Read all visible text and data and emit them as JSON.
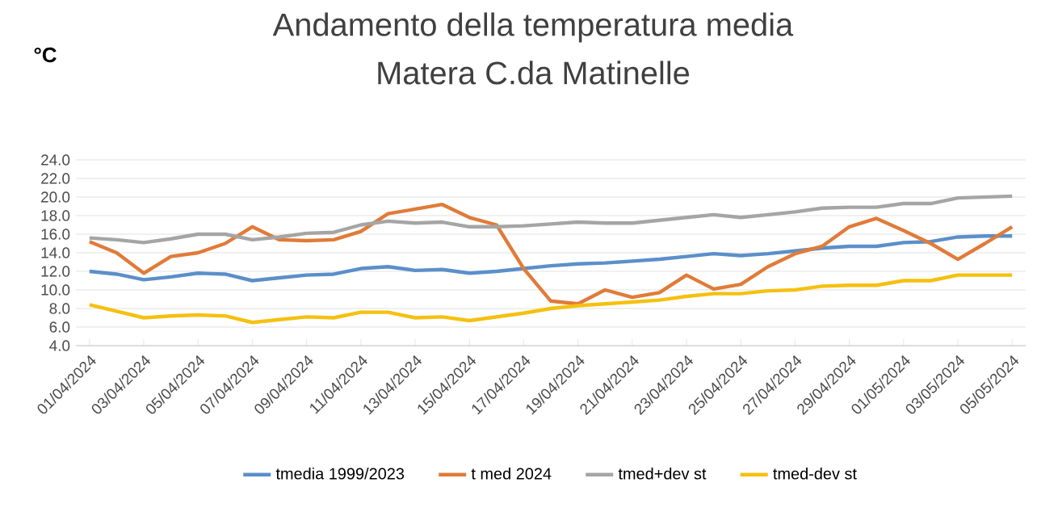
{
  "chart_data": {
    "type": "line",
    "title": "Andamento della temperatura media",
    "subtitle": "Matera C.da Matinelle",
    "ylabel": "°C",
    "categories": [
      "01/04/2024",
      null,
      "03/04/2024",
      null,
      "05/04/2024",
      null,
      "07/04/2024",
      null,
      "09/04/2024",
      null,
      "11/04/2024",
      null,
      "13/04/2024",
      null,
      "15/04/2024",
      null,
      "17/04/2024",
      null,
      "19/04/2024",
      null,
      "21/04/2024",
      null,
      "23/04/2024",
      null,
      "25/04/2024",
      null,
      "27/04/2024",
      null,
      "29/04/2024",
      null,
      "01/05/2024",
      null,
      "03/05/2024",
      null,
      "05/05/2024"
    ],
    "series": [
      {
        "name": "tmedia 1999/2023",
        "color": "#5b8fc9",
        "values": [
          12.0,
          11.7,
          11.1,
          11.4,
          11.8,
          11.7,
          11.0,
          11.3,
          11.6,
          11.7,
          12.3,
          12.5,
          12.1,
          12.2,
          11.8,
          12.0,
          12.3,
          12.6,
          12.8,
          12.9,
          13.1,
          13.3,
          13.6,
          13.9,
          13.7,
          13.9,
          14.2,
          14.5,
          14.7,
          14.7,
          15.1,
          15.2,
          15.7,
          15.8,
          15.8
        ]
      },
      {
        "name": "t med 2024",
        "color": "#e07b39",
        "values": [
          15.2,
          14.0,
          11.8,
          13.6,
          14.0,
          15.0,
          16.8,
          15.4,
          15.3,
          15.4,
          16.3,
          18.2,
          18.7,
          19.2,
          17.8,
          17.0,
          12.3,
          8.8,
          8.5,
          10.0,
          9.2,
          9.7,
          11.6,
          10.1,
          10.6,
          12.5,
          13.9,
          14.7,
          16.8,
          17.7,
          16.4,
          15.0,
          13.3,
          15.0,
          16.8
        ]
      },
      {
        "name": "tmed+dev st",
        "color": "#a5a5a5",
        "values": [
          15.6,
          15.4,
          15.1,
          15.5,
          16.0,
          16.0,
          15.4,
          15.7,
          16.1,
          16.2,
          17.0,
          17.4,
          17.2,
          17.3,
          16.8,
          16.8,
          16.9,
          17.1,
          17.3,
          17.2,
          17.2,
          17.5,
          17.8,
          18.1,
          17.8,
          18.1,
          18.4,
          18.8,
          18.9,
          18.9,
          19.3,
          19.3,
          19.9,
          20.0,
          20.1
        ]
      },
      {
        "name": "tmed-dev st",
        "color": "#f5c010",
        "values": [
          8.4,
          7.7,
          7.0,
          7.2,
          7.3,
          7.2,
          6.5,
          6.8,
          7.1,
          7.0,
          7.6,
          7.6,
          7.0,
          7.1,
          6.7,
          7.1,
          7.5,
          8.0,
          8.3,
          8.5,
          8.7,
          8.9,
          9.3,
          9.6,
          9.6,
          9.9,
          10.0,
          10.4,
          10.5,
          10.5,
          11.0,
          11.0,
          11.6,
          11.6,
          11.6
        ]
      }
    ],
    "ylim": [
      4,
      24
    ],
    "yticks": [
      {
        "value": 4,
        "label": "4.0"
      },
      {
        "value": 6,
        "label": "6.0"
      },
      {
        "value": 8,
        "label": "8.0"
      },
      {
        "value": 10,
        "label": "10.0"
      },
      {
        "value": 12,
        "label": "12.0"
      },
      {
        "value": 14,
        "label": "14.0"
      },
      {
        "value": 16,
        "label": "16.0"
      },
      {
        "value": 18,
        "label": "18.0"
      },
      {
        "value": 20,
        "label": "20.0"
      },
      {
        "value": 22,
        "label": "22.0"
      },
      {
        "value": 24,
        "label": "24.0"
      }
    ],
    "grid": "y",
    "legend": "bottom",
    "marker": "none",
    "line_style": "solid"
  }
}
